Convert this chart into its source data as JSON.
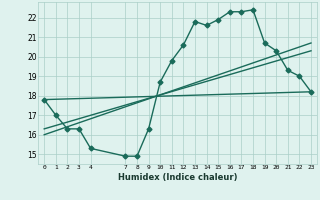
{
  "xlabel": "Humidex (Indice chaleur)",
  "x_ticks": [
    0,
    1,
    2,
    3,
    4,
    7,
    8,
    9,
    10,
    11,
    12,
    13,
    14,
    15,
    16,
    17,
    18,
    19,
    20,
    21,
    22,
    23
  ],
  "main_line_x": [
    0,
    1,
    2,
    3,
    4,
    7,
    8,
    9,
    10,
    11,
    12,
    13,
    14,
    15,
    16,
    17,
    18,
    19,
    20,
    21,
    22,
    23
  ],
  "main_line_y": [
    17.8,
    17.0,
    16.3,
    16.3,
    15.3,
    14.9,
    14.9,
    16.3,
    18.7,
    19.8,
    20.6,
    21.8,
    21.6,
    21.9,
    22.3,
    22.3,
    22.4,
    20.7,
    20.3,
    19.3,
    19.0,
    18.2
  ],
  "line2_x": [
    0,
    23
  ],
  "line2_y": [
    17.8,
    18.2
  ],
  "line3_x": [
    0,
    23
  ],
  "line3_y": [
    16.3,
    20.3
  ],
  "line4_x": [
    0,
    23
  ],
  "line4_y": [
    16.0,
    20.7
  ],
  "ylim": [
    14.5,
    22.8
  ],
  "xlim": [
    -0.5,
    23.5
  ],
  "yticks": [
    15,
    16,
    17,
    18,
    19,
    20,
    21,
    22
  ],
  "bg_color": "#dff2ee",
  "grid_color": "#aacfc8",
  "line_color": "#1a6b5a",
  "line_width": 1.0,
  "marker": "D",
  "marker_size": 2.5
}
